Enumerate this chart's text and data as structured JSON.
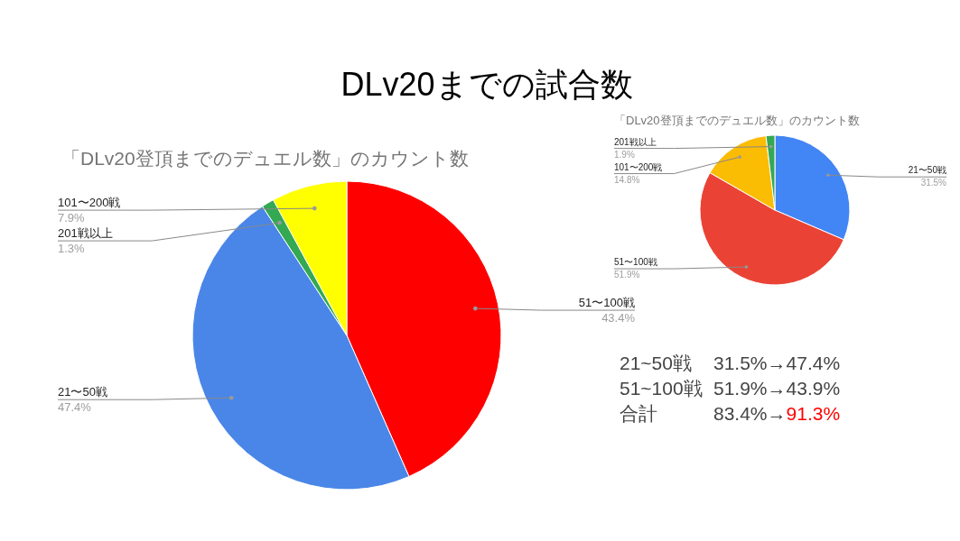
{
  "chart_data": [
    {
      "type": "pie",
      "title": "DLv20までの試合数",
      "subtitle": "「DLv20登頂までのデュエル数」のカウント数",
      "categories": [
        "51〜100戦",
        "21〜50戦",
        "201戦以上",
        "101〜200戦"
      ],
      "values": [
        43.4,
        47.4,
        1.3,
        7.9
      ],
      "colors": [
        "#ff0000",
        "#4a86e8",
        "#34a853",
        "#ffff00"
      ],
      "value_labels": [
        "43.4%",
        "47.4%",
        "1.3%",
        "7.9%"
      ]
    },
    {
      "type": "pie",
      "title": "「DLv20登頂までのデュエル数」のカウント数",
      "categories": [
        "21〜50戦",
        "51〜100戦",
        "101〜200戦",
        "201戦以上"
      ],
      "values": [
        31.5,
        51.9,
        14.8,
        1.9
      ],
      "colors": [
        "#4285f4",
        "#ea4335",
        "#fbbc04",
        "#34a853"
      ],
      "value_labels": [
        "31.5%",
        "51.9%",
        "14.8%",
        "1.9%"
      ]
    },
    {
      "type": "other",
      "annotations": [
        "21~50戦",
        "31.5%→47.4%",
        "51~100戦",
        "51.9%→43.9%",
        "合計",
        "83.4%→",
        "91.3%"
      ]
    }
  ]
}
